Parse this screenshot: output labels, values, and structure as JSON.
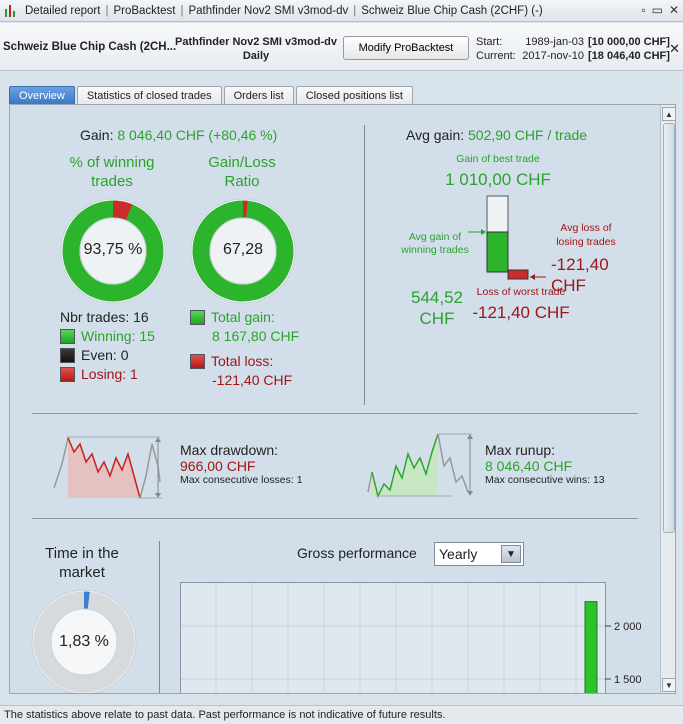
{
  "titlebar": {
    "items": [
      "Detailed report",
      "ProBacktest",
      "Pathfinder Nov2 SMI v3mod-dv",
      "Schweiz Blue Chip Cash (2CHF) (-)"
    ],
    "window_buttons": [
      "▫",
      "▭",
      "✕"
    ]
  },
  "header": {
    "instrument": "Schweiz Blue Chip Cash (2CH...",
    "system_name": "Pathfinder Nov2 SMI v3mod-dv",
    "timeframe": "Daily",
    "modify_button": "Modify ProBacktest",
    "start_label": "Start:",
    "start_date": "1989-jan-03",
    "start_capital": "[10 000,00 CHF]",
    "current_label": "Current:",
    "current_date": "2017-nov-10",
    "current_capital": "[18 046,40 CHF]",
    "close": "✕"
  },
  "tabs": [
    "Overview",
    "Statistics of closed trades",
    "Orders list",
    "Closed positions list"
  ],
  "overview": {
    "gain_label": "Gain:",
    "gain_value": "8 046,40 CHF (+80,46 %)",
    "winning_title": "% of winning trades",
    "winning_pct": "93,75 %",
    "winning_fraction": 0.9375,
    "ratio_title": "Gain/Loss Ratio",
    "ratio_value": "67,28",
    "ratio_fraction": 0.985,
    "nbr_trades": "Nbr trades: 16",
    "winning": "Winning: 15",
    "even": "Even: 0",
    "losing": "Losing: 1",
    "total_gain_label": "Total gain:",
    "total_gain_value": "8 167,80 CHF",
    "total_loss_label": "Total loss:",
    "total_loss_value": "-121,40 CHF",
    "avg_gain_label": "Avg gain:",
    "avg_gain_value": "502,90 CHF / trade",
    "best_trade_label": "Gain of best trade",
    "best_trade_value": "1 010,00 CHF",
    "avg_gain_winning_label": "Avg gain of winning trades",
    "avg_gain_winning_value": "544,52 CHF",
    "avg_loss_losing_label": "Avg loss of losing trades",
    "avg_loss_losing_value": "-121,40 CHF",
    "worst_trade_label": "Loss of worst trade",
    "worst_trade_value": "-121,40 CHF",
    "max_drawdown_label": "Max drawdown:",
    "max_drawdown_value": "966,00 CHF",
    "max_consec_losses": "Max consecutive losses: 1",
    "max_runup_label": "Max runup:",
    "max_runup_value": "8 046,40 CHF",
    "max_consec_wins": "Max consecutive wins: 13",
    "time_in_market_title": "Time in the market",
    "time_in_market_value": "1,83 %",
    "time_in_market_fraction": 0.0183,
    "gross_perf_label": "Gross performance",
    "gross_perf_period": "Yearly"
  },
  "chart_data": {
    "type": "bar",
    "title": "Gross performance",
    "y_ticks": [
      2000,
      1500
    ],
    "y_tick_labels": [
      "2 000",
      "1 500"
    ],
    "visible_bars": [
      {
        "value": 2230
      }
    ]
  },
  "footer": "The statistics above relate to past data. Past performance is not indicative of future results.",
  "colors": {
    "green": "#2ba22b",
    "red": "#a01515",
    "tab_active": "#3a78c8"
  }
}
